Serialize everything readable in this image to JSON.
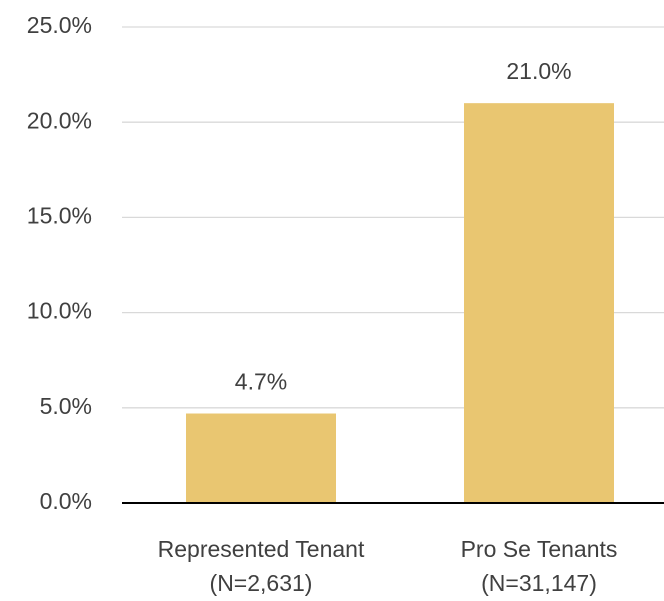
{
  "chart_data": {
    "type": "bar",
    "categories": [
      "Represented Tenant (N=2,631)",
      "Pro Se Tenants (N=31,147)"
    ],
    "values": [
      4.7,
      21.0
    ],
    "value_labels": [
      "4.7%",
      "21.0%"
    ],
    "color": "#e9c671",
    "ylim": [
      0,
      25
    ],
    "yticks": [
      {
        "value": 0,
        "label": "0.0%"
      },
      {
        "value": 5,
        "label": "5.0%"
      },
      {
        "value": 10,
        "label": "10.0%"
      },
      {
        "value": 15,
        "label": "15.0%"
      },
      {
        "value": 20,
        "label": "20.0%"
      },
      {
        "value": 25,
        "label": "25.0%"
      }
    ],
    "grid": true
  }
}
